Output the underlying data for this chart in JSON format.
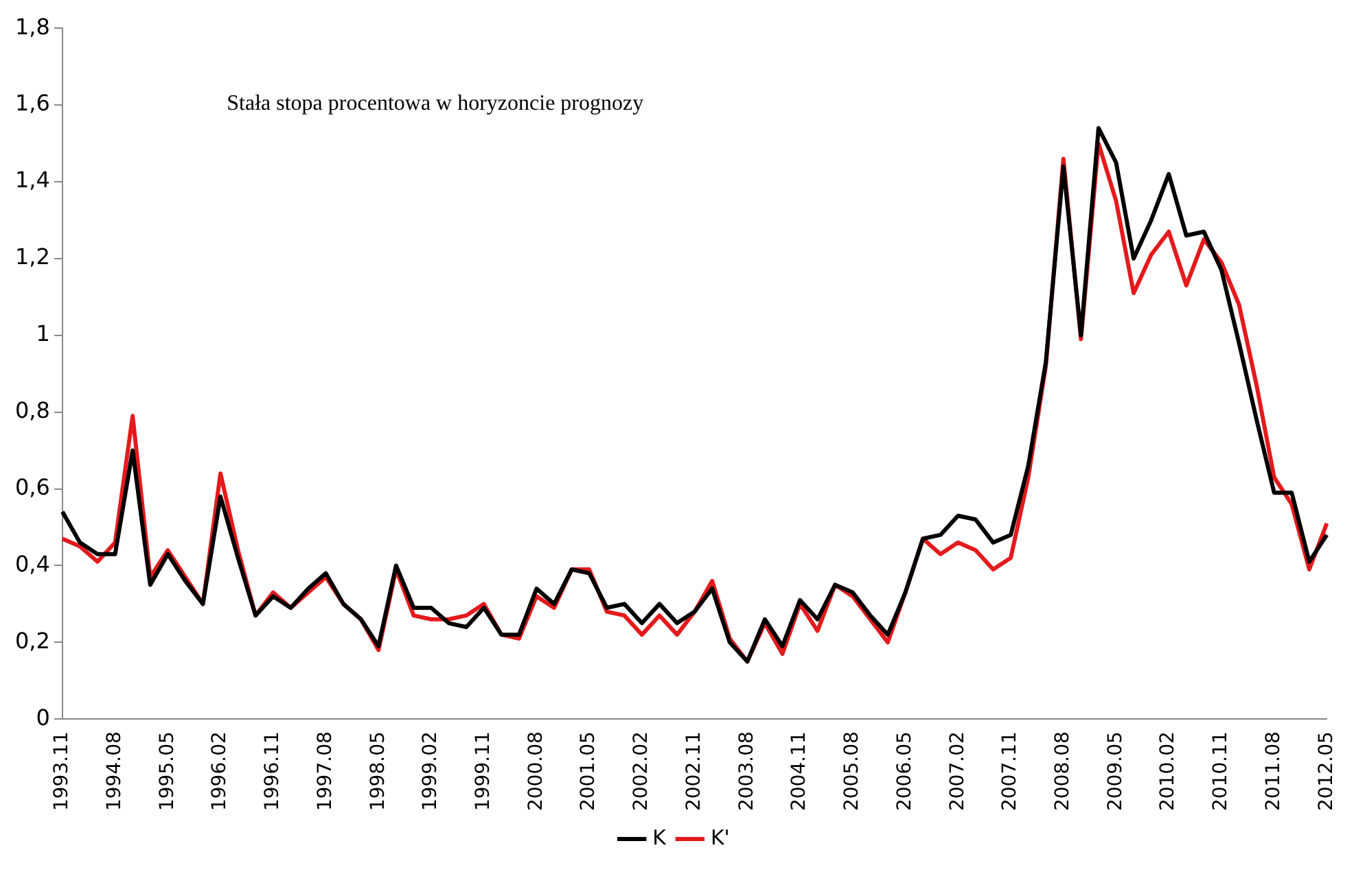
{
  "chart_data": {
    "type": "line",
    "annotations": [
      "Stała stopa procentowa w horyzoncie prognozy"
    ],
    "categories": [
      "1993.11",
      null,
      null,
      "1994.08",
      null,
      null,
      "1995.05",
      null,
      null,
      "1996.02",
      null,
      null,
      "1996.11",
      null,
      null,
      "1997.08",
      null,
      null,
      "1998.05",
      null,
      null,
      "1999.02",
      null,
      null,
      "1999.11",
      null,
      null,
      "2000.08",
      null,
      null,
      "2001.05",
      null,
      null,
      "2002.02",
      null,
      null,
      "2002.11",
      null,
      null,
      "2003.08",
      null,
      null,
      "2004.11",
      null,
      null,
      "2005.08",
      null,
      null,
      "2006.05",
      null,
      null,
      "2007.02",
      null,
      null,
      "2007.11",
      null,
      null,
      "2008.08",
      null,
      null,
      "2009.05",
      null,
      null,
      "2010.02",
      null,
      null,
      "2010.11",
      null,
      null,
      "2011.08",
      null,
      null,
      "2012.05"
    ],
    "series": [
      {
        "name": "K",
        "color": "#000000",
        "values": [
          0.54,
          0.46,
          0.43,
          0.43,
          0.7,
          0.35,
          0.43,
          0.36,
          0.3,
          0.58,
          0.42,
          0.27,
          0.32,
          0.29,
          0.34,
          0.38,
          0.3,
          0.26,
          0.19,
          0.4,
          0.29,
          0.29,
          0.25,
          0.24,
          0.29,
          0.22,
          0.22,
          0.34,
          0.3,
          0.39,
          0.38,
          0.29,
          0.3,
          0.25,
          0.3,
          0.25,
          0.28,
          0.34,
          0.2,
          0.15,
          0.26,
          0.19,
          0.31,
          0.26,
          0.35,
          0.33,
          0.27,
          0.22,
          0.33,
          0.47,
          0.48,
          0.53,
          0.52,
          0.46,
          0.48,
          0.66,
          0.93,
          1.44,
          1.0,
          1.54,
          1.45,
          1.2,
          1.3,
          1.42,
          1.26,
          1.27,
          1.17,
          0.98,
          0.78,
          0.59,
          0.59,
          0.41,
          0.48
        ]
      },
      {
        "name": "K'",
        "color": "#e41a1c",
        "values": [
          0.47,
          0.45,
          0.41,
          0.46,
          0.79,
          0.37,
          0.44,
          0.37,
          0.3,
          0.64,
          0.44,
          0.27,
          0.33,
          0.29,
          0.33,
          0.37,
          0.3,
          0.26,
          0.18,
          0.39,
          0.27,
          0.26,
          0.26,
          0.27,
          0.3,
          0.22,
          0.21,
          0.32,
          0.29,
          0.39,
          0.39,
          0.28,
          0.27,
          0.22,
          0.27,
          0.22,
          0.28,
          0.36,
          0.21,
          0.15,
          0.25,
          0.17,
          0.3,
          0.23,
          0.35,
          0.32,
          0.26,
          0.2,
          0.33,
          0.47,
          0.43,
          0.46,
          0.44,
          0.39,
          0.42,
          0.63,
          0.92,
          1.46,
          0.99,
          1.5,
          1.35,
          1.11,
          1.21,
          1.27,
          1.13,
          1.25,
          1.19,
          1.08,
          0.87,
          0.63,
          0.56,
          0.39,
          0.51
        ]
      }
    ],
    "ylim": [
      0,
      1.8
    ],
    "yticks": [
      0,
      {
        "value": 0.2,
        "label": "0,2"
      },
      {
        "value": 0.4,
        "label": "0,4"
      },
      {
        "value": 0.6,
        "label": "0,6"
      },
      {
        "value": 0.8,
        "label": "0,8"
      },
      1,
      {
        "value": 1.2,
        "label": "1,2"
      },
      {
        "value": 1.4,
        "label": "1,4"
      },
      {
        "value": 1.6,
        "label": "1,6"
      },
      {
        "value": 1.8,
        "label": "1,8"
      }
    ],
    "grid": false,
    "legend": "bottom",
    "marker": "none",
    "line_style": "solid"
  }
}
